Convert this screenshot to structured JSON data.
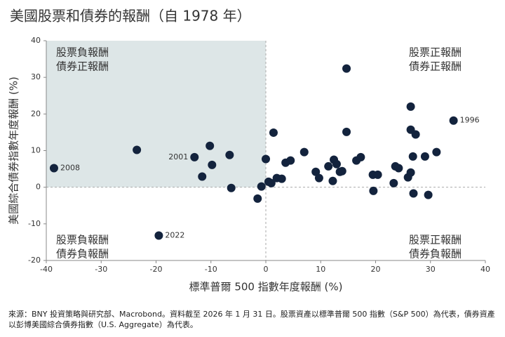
{
  "chart_data": {
    "type": "scatter",
    "title": "美國股票和債券的報酬（自 1978 年）",
    "x_label": "標準普爾 500 指數年度報酬 (%)",
    "y_label": "美國綜合債券指數年度報酬 (%)",
    "color": "#13233d",
    "shade_color": "#dde6e7",
    "xlim": [
      -40,
      40
    ],
    "ylim": [
      -20,
      40
    ],
    "xticks": [
      -40,
      -30,
      -20,
      -10,
      0,
      10,
      20,
      30,
      40
    ],
    "yticks": [
      -20,
      -10,
      0,
      10,
      20,
      30,
      40
    ],
    "x": [
      -38.6,
      -23.5,
      -19.5,
      -13.0,
      -11.6,
      -10.2,
      -9.8,
      -6.6,
      -6.3,
      -1.5,
      -0.8,
      0.0,
      0.5,
      1.0,
      1.4,
      2.0,
      2.9,
      3.6,
      4.5,
      7.0,
      9.1,
      9.7,
      11.4,
      12.2,
      12.4,
      12.9,
      13.5,
      13.9,
      14.7,
      14.7,
      16.5,
      17.3,
      19.5,
      19.6,
      20.4,
      23.3,
      23.6,
      24.2,
      25.9,
      26.4,
      26.4,
      26.4,
      26.8,
      26.9,
      27.3,
      29.0,
      29.6,
      31.1,
      34.2
    ],
    "values": [
      5.2,
      10.2,
      -13.2,
      8.2,
      2.9,
      11.3,
      6.1,
      8.8,
      -0.2,
      -3.1,
      0.2,
      7.7,
      1.5,
      1.1,
      14.9,
      2.5,
      2.3,
      6.7,
      7.3,
      9.6,
      4.2,
      2.5,
      5.7,
      1.7,
      7.5,
      6.3,
      4.2,
      4.4,
      32.4,
      15.1,
      7.3,
      8.2,
      3.4,
      -1.0,
      3.4,
      1.1,
      5.7,
      5.2,
      2.7,
      22.0,
      15.7,
      4.0,
      8.4,
      -1.7,
      14.4,
      8.4,
      -2.1,
      9.6,
      18.2
    ],
    "point_labels": [
      "2008",
      null,
      "2022",
      "2001",
      null,
      null,
      null,
      null,
      null,
      null,
      null,
      null,
      null,
      null,
      null,
      null,
      null,
      null,
      null,
      null,
      null,
      null,
      null,
      null,
      null,
      null,
      null,
      null,
      null,
      null,
      null,
      null,
      null,
      null,
      null,
      null,
      null,
      null,
      null,
      null,
      null,
      null,
      null,
      null,
      null,
      null,
      null,
      null,
      "1996"
    ],
    "quadrant_labels": {
      "top_left": [
        "股票負報酬",
        "債券正報酬"
      ],
      "top_right": [
        "股票正報酬",
        "債券正報酬"
      ],
      "bottom_left": [
        "股票負報酬",
        "債券負報酬"
      ],
      "bottom_right": [
        "股票正報酬",
        "債券負報酬"
      ]
    },
    "source": "來源：BNY 投資策略與研究部、Macrobond。資料截至 2026 年 1 月 31 日。股票資產以標準普爾 500 指數（S&P 500）為代表，債券資產以彭博美國綜合債券指數（U.S. Aggregate）為代表。"
  }
}
